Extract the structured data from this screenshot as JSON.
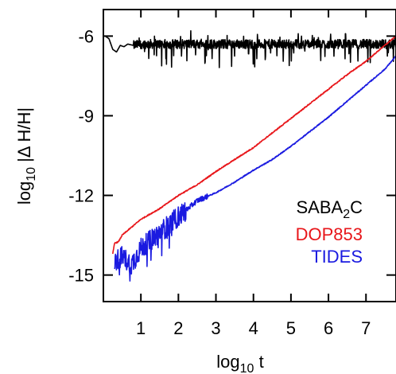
{
  "chart_data": {
    "type": "line",
    "xlabel": {
      "base": "log",
      "sub": "10",
      "rest": " t"
    },
    "ylabel": {
      "base": "log",
      "sub": "10",
      "rest": " |Δ H/H|"
    },
    "xlim": [
      0,
      7.8
    ],
    "ylim": [
      -16,
      -5
    ],
    "x_ticks": [
      1,
      2,
      3,
      4,
      5,
      6,
      7
    ],
    "x_tick_labels": [
      "1",
      "2",
      "3",
      "4",
      "5",
      "6",
      "7"
    ],
    "y_ticks": [
      -6,
      -9,
      -12,
      -15
    ],
    "y_tick_labels": [
      "-6",
      "-9",
      "-12",
      "-15"
    ],
    "legend_placement": "lower-right",
    "series": [
      {
        "name": "SABA2C",
        "label": {
          "base": "SABA",
          "sub": "2",
          "rest": "C"
        },
        "color": "#000000",
        "x": [
          0.05,
          0.15,
          0.25,
          0.35,
          0.45,
          0.55,
          0.65,
          0.8,
          1.0,
          2.0,
          3.0,
          4.0,
          5.0,
          6.0,
          7.0,
          7.8
        ],
        "y": [
          -6.0,
          -6.1,
          -6.5,
          -6.6,
          -6.35,
          -6.4,
          -6.3,
          -6.35,
          -6.3,
          -6.3,
          -6.3,
          -6.3,
          -6.3,
          -6.3,
          -6.3,
          -6.3
        ],
        "noise": "high-frequency fluctuations between -7.2 and -5.9 for x >= 0.8"
      },
      {
        "name": "DOP853",
        "color": "#e8161a",
        "x": [
          0.25,
          0.3,
          0.4,
          0.5,
          0.75,
          1.0,
          1.5,
          2.0,
          2.5,
          3.0,
          3.5,
          4.0,
          4.5,
          5.0,
          5.5,
          6.0,
          6.5,
          7.0,
          7.5,
          7.8
        ],
        "y": [
          -14.2,
          -13.8,
          -13.75,
          -13.5,
          -13.2,
          -12.9,
          -12.5,
          -12.0,
          -11.6,
          -11.1,
          -10.65,
          -10.2,
          -9.65,
          -9.1,
          -8.55,
          -8.0,
          -7.45,
          -6.95,
          -6.35,
          -6.0
        ]
      },
      {
        "name": "TIDES",
        "color": "#1a1ae0",
        "x": [
          0.3,
          0.5,
          0.75,
          1.0,
          1.5,
          2.0,
          2.5,
          3.0,
          3.5,
          4.0,
          4.5,
          5.0,
          5.5,
          6.0,
          6.5,
          7.0,
          7.5,
          7.8
        ],
        "y": [
          -14.5,
          -14.3,
          -14.6,
          -14.0,
          -13.4,
          -12.8,
          -12.2,
          -11.9,
          -11.5,
          -11.05,
          -10.65,
          -10.15,
          -9.6,
          -9.05,
          -8.45,
          -7.85,
          -7.25,
          -6.75
        ],
        "noise": "large fluctuations (down to about -15.5) for x < 2.2, smaller fluctuations up to x ~ 2.8"
      }
    ]
  }
}
